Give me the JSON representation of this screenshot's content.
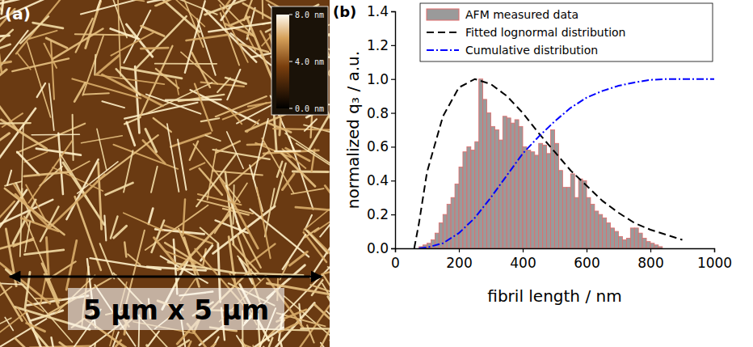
{
  "panel_a": {
    "panel_label": "(a)",
    "colorbar": {
      "range": [
        0,
        8
      ],
      "ticks": [
        {
          "value": 0,
          "label": "0.0 nm"
        },
        {
          "value": 4,
          "label": "4.0 nm"
        },
        {
          "value": 8,
          "label": "8.0 nm"
        }
      ]
    },
    "scale_label": "5 µm x 5 µm"
  },
  "chart_data": {
    "type": "histogram",
    "panel_label": "(b)",
    "x_label": "fibril length / nm",
    "y_label": "normalized q₃ / a.u.",
    "xlim": [
      0,
      1000
    ],
    "xticks": [
      0,
      200,
      400,
      600,
      800,
      1000
    ],
    "ylim": [
      0,
      1.4
    ],
    "yticks": [
      {
        "value": 0,
        "label": "0.0"
      },
      0.2,
      0.4,
      0.6,
      0.8,
      {
        "value": 1,
        "label": "1.0"
      },
      1.2,
      1.4
    ],
    "grid": false,
    "legend": "upper right",
    "bins": [
      75,
      87.5,
      100,
      112.5,
      125,
      137.5,
      150,
      162.5,
      175,
      187.5,
      200,
      212.5,
      225,
      237.5,
      250,
      262.5,
      275,
      287.5,
      300,
      312.5,
      325,
      337.5,
      350,
      362.5,
      375,
      387.5,
      400,
      412.5,
      425,
      437.5,
      450,
      462.5,
      475,
      487.5,
      500,
      512.5,
      525,
      537.5,
      550,
      562.5,
      575,
      587.5,
      600,
      612.5,
      625,
      637.5,
      650,
      662.5,
      675,
      687.5,
      700,
      712.5,
      725,
      737.5,
      750,
      762.5,
      775,
      787.5,
      800,
      812.5,
      825,
      837.5
    ],
    "series": [
      {
        "name": "AFM measured data",
        "type": "histogram",
        "color": "#9a9a9a",
        "values": [
          0.01,
          0.02,
          0.03,
          0.05,
          0.09,
          0.15,
          0.2,
          0.26,
          0.3,
          0.38,
          0.48,
          0.57,
          0.6,
          0.58,
          0.63,
          1.0,
          0.88,
          0.8,
          0.72,
          0.7,
          0.64,
          0.78,
          0.77,
          0.74,
          0.76,
          0.72,
          0.6,
          0.58,
          0.57,
          0.55,
          0.62,
          0.61,
          0.56,
          0.7,
          0.62,
          0.46,
          0.36,
          0.36,
          0.44,
          0.3,
          0.41,
          0.4,
          0.3,
          0.26,
          0.22,
          0.2,
          0.18,
          0.15,
          0.12,
          0.1,
          0.07,
          0.05,
          0.06,
          0.12,
          0.12,
          0.09,
          0.06,
          0.04,
          0.03,
          0.02,
          0.01
        ]
      },
      {
        "name": "Fitted lognormal distribution",
        "type": "line",
        "line_style": "dashed",
        "color": "#000000",
        "x": [
          60,
          75,
          100,
          150,
          200,
          250,
          300,
          350,
          400,
          450,
          500,
          550,
          600,
          650,
          700,
          750,
          800,
          850,
          900
        ],
        "values": [
          0,
          0.15,
          0.45,
          0.78,
          0.95,
          1.0,
          0.97,
          0.9,
          0.8,
          0.68,
          0.57,
          0.46,
          0.37,
          0.28,
          0.21,
          0.15,
          0.11,
          0.08,
          0.05
        ]
      },
      {
        "name": "Cumulative distribution",
        "type": "line",
        "line_style": "dashdot",
        "color": "#0000ff",
        "x": [
          75,
          100,
          150,
          200,
          250,
          300,
          350,
          400,
          450,
          500,
          550,
          600,
          650,
          700,
          750,
          800,
          850,
          900,
          1000
        ],
        "values": [
          0,
          0.005,
          0.03,
          0.09,
          0.18,
          0.3,
          0.43,
          0.56,
          0.66,
          0.75,
          0.83,
          0.89,
          0.93,
          0.96,
          0.98,
          0.995,
          1.0,
          1.0,
          1.0
        ]
      }
    ]
  }
}
